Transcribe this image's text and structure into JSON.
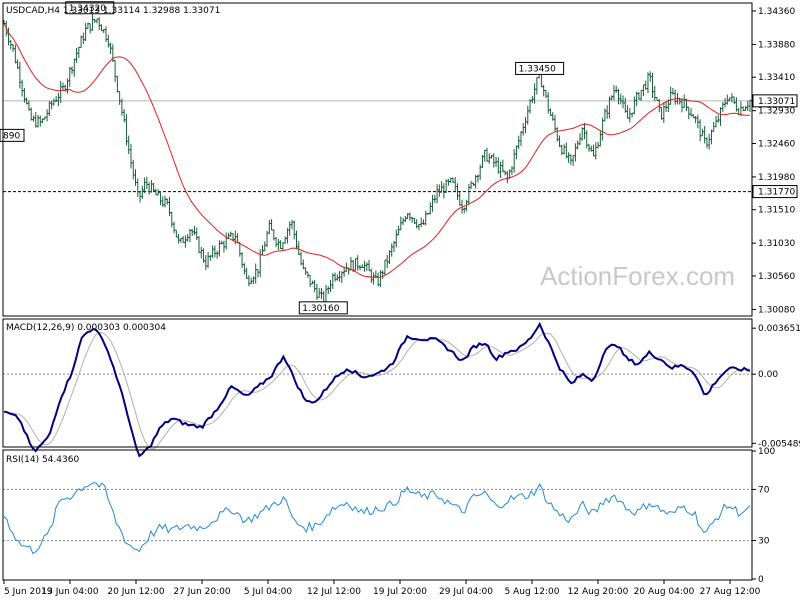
{
  "chart_data": {
    "type": "line",
    "symbol": "USDCAD,H4",
    "header_values": "1.33013 1.33114 1.32988 1.33071",
    "watermark": "ActionForex.com",
    "x_ticks": [
      "5 Jun 2019",
      "13 Jun 04:00",
      "20 Jun 12:00",
      "27 Jun 20:00",
      "5 Jul 04:00",
      "12 Jul 12:00",
      "19 Jul 20:00",
      "29 Jul 04:00",
      "5 Aug 12:00",
      "12 Aug 20:00",
      "20 Aug 04:00",
      "27 Aug 12:00"
    ],
    "price": {
      "y_ticks": [
        1.3436,
        1.3388,
        1.3341,
        1.3293,
        1.3246,
        1.3198,
        1.3151,
        1.3103,
        1.3056,
        1.3008
      ],
      "y_tick_labels": [
        "1.34360",
        "1.33880",
        "1.33410",
        "1.32930",
        "1.32460",
        "1.31980",
        "1.31510",
        "1.31030",
        "1.30560",
        "1.30080"
      ],
      "ylim": [
        1.3,
        1.3446
      ],
      "current": {
        "value": 1.33071,
        "label": "1.33071"
      },
      "level": {
        "value": 1.3177,
        "label": "1.31770"
      },
      "annotations": [
        {
          "label": "1.34320",
          "value": 1.3432,
          "t": 0.115
        },
        {
          "label": "1.33450",
          "value": 1.3345,
          "t": 0.718
        },
        {
          "label": "1.30160",
          "value": 1.3016,
          "t": 0.428
        },
        {
          "label": "890",
          "value": 1.3249,
          "t": 0.0
        }
      ],
      "anchors": [
        [
          0,
          1.3418
        ],
        [
          0.012,
          1.338
        ],
        [
          0.025,
          1.3325
        ],
        [
          0.035,
          1.328
        ],
        [
          0.05,
          1.3275
        ],
        [
          0.065,
          1.3305
        ],
        [
          0.08,
          1.3325
        ],
        [
          0.095,
          1.337
        ],
        [
          0.11,
          1.341
        ],
        [
          0.125,
          1.3425
        ],
        [
          0.14,
          1.3395
        ],
        [
          0.155,
          1.331
        ],
        [
          0.17,
          1.322
        ],
        [
          0.18,
          1.3165
        ],
        [
          0.19,
          1.319
        ],
        [
          0.205,
          1.317
        ],
        [
          0.22,
          1.3155
        ],
        [
          0.235,
          1.31
        ],
        [
          0.25,
          1.3125
        ],
        [
          0.27,
          1.3075
        ],
        [
          0.29,
          1.31
        ],
        [
          0.31,
          1.3115
        ],
        [
          0.325,
          1.305
        ],
        [
          0.34,
          1.3065
        ],
        [
          0.355,
          1.3125
        ],
        [
          0.37,
          1.31
        ],
        [
          0.385,
          1.3135
        ],
        [
          0.4,
          1.3065
        ],
        [
          0.415,
          1.304
        ],
        [
          0.428,
          1.302
        ],
        [
          0.44,
          1.3055
        ],
        [
          0.46,
          1.307
        ],
        [
          0.48,
          1.3075
        ],
        [
          0.5,
          1.3045
        ],
        [
          0.52,
          1.3095
        ],
        [
          0.54,
          1.315
        ],
        [
          0.56,
          1.3125
        ],
        [
          0.58,
          1.3175
        ],
        [
          0.6,
          1.319
        ],
        [
          0.615,
          1.3155
        ],
        [
          0.63,
          1.3195
        ],
        [
          0.645,
          1.323
        ],
        [
          0.66,
          1.3215
        ],
        [
          0.675,
          1.3195
        ],
        [
          0.69,
          1.325
        ],
        [
          0.705,
          1.3305
        ],
        [
          0.718,
          1.3345
        ],
        [
          0.73,
          1.3295
        ],
        [
          0.745,
          1.3245
        ],
        [
          0.76,
          1.3215
        ],
        [
          0.775,
          1.327
        ],
        [
          0.79,
          1.3225
        ],
        [
          0.805,
          1.3285
        ],
        [
          0.82,
          1.333
        ],
        [
          0.835,
          1.328
        ],
        [
          0.85,
          1.3315
        ],
        [
          0.865,
          1.334
        ],
        [
          0.88,
          1.3285
        ],
        [
          0.895,
          1.3315
        ],
        [
          0.91,
          1.3305
        ],
        [
          0.925,
          1.3285
        ],
        [
          0.94,
          1.3245
        ],
        [
          0.955,
          1.3275
        ],
        [
          0.97,
          1.3315
        ],
        [
          0.985,
          1.3295
        ],
        [
          1.0,
          1.3307
        ]
      ]
    },
    "macd": {
      "label": "MACD(12,26,9) 0.000303 0.000304",
      "y_ticks": [
        0.003651,
        0.0,
        -0.005489
      ],
      "y_tick_labels": [
        "0.003651",
        "0.00",
        "-0.005489"
      ],
      "ylim": [
        -0.0057,
        0.0043
      ],
      "colors": {
        "macd": "#000080",
        "signal": "#b0b0b0"
      },
      "anchors": [
        [
          0,
          -0.003
        ],
        [
          0.02,
          -0.0035
        ],
        [
          0.04,
          -0.0062
        ],
        [
          0.06,
          -0.005
        ],
        [
          0.075,
          -0.002
        ],
        [
          0.09,
          0.0
        ],
        [
          0.105,
          0.003
        ],
        [
          0.12,
          0.0037
        ],
        [
          0.135,
          0.0025
        ],
        [
          0.15,
          0.0
        ],
        [
          0.165,
          -0.003
        ],
        [
          0.18,
          -0.0066
        ],
        [
          0.195,
          -0.0058
        ],
        [
          0.21,
          -0.0042
        ],
        [
          0.225,
          -0.0035
        ],
        [
          0.245,
          -0.004
        ],
        [
          0.265,
          -0.0042
        ],
        [
          0.285,
          -0.0028
        ],
        [
          0.305,
          -0.001
        ],
        [
          0.325,
          -0.0018
        ],
        [
          0.345,
          -0.0008
        ],
        [
          0.36,
          0.0
        ],
        [
          0.375,
          0.0015
        ],
        [
          0.39,
          -0.0005
        ],
        [
          0.405,
          -0.0022
        ],
        [
          0.42,
          -0.0021
        ],
        [
          0.44,
          -0.0005
        ],
        [
          0.46,
          0.0005
        ],
        [
          0.48,
          -0.0002
        ],
        [
          0.5,
          0.0
        ],
        [
          0.52,
          0.0008
        ],
        [
          0.54,
          0.003
        ],
        [
          0.56,
          0.0028
        ],
        [
          0.58,
          0.0027
        ],
        [
          0.6,
          0.0018
        ],
        [
          0.615,
          0.001
        ],
        [
          0.63,
          0.0022
        ],
        [
          0.645,
          0.0025
        ],
        [
          0.66,
          0.0012
        ],
        [
          0.675,
          0.0018
        ],
        [
          0.69,
          0.002
        ],
        [
          0.705,
          0.0028
        ],
        [
          0.718,
          0.004
        ],
        [
          0.73,
          0.0025
        ],
        [
          0.745,
          0.0005
        ],
        [
          0.76,
          -0.0008
        ],
        [
          0.775,
          0.0
        ],
        [
          0.79,
          -0.0005
        ],
        [
          0.805,
          0.0018
        ],
        [
          0.82,
          0.0025
        ],
        [
          0.835,
          0.0012
        ],
        [
          0.85,
          0.0008
        ],
        [
          0.865,
          0.0017
        ],
        [
          0.88,
          0.0012
        ],
        [
          0.895,
          0.0005
        ],
        [
          0.91,
          0.0007
        ],
        [
          0.925,
          0.0002
        ],
        [
          0.94,
          -0.0018
        ],
        [
          0.955,
          -0.0005
        ],
        [
          0.97,
          0.0004
        ],
        [
          0.985,
          0.0004
        ],
        [
          1.0,
          0.0003
        ]
      ]
    },
    "rsi": {
      "label": "RSI(14) 54.4360",
      "y_ticks": [
        100,
        70,
        30,
        0
      ],
      "y_tick_labels": [
        "100",
        "70",
        "30",
        "0"
      ],
      "ylim": [
        0,
        100
      ],
      "color": "#1f8ad8",
      "anchors": [
        [
          0,
          50
        ],
        [
          0.02,
          28
        ],
        [
          0.04,
          22
        ],
        [
          0.06,
          35
        ],
        [
          0.075,
          62
        ],
        [
          0.09,
          65
        ],
        [
          0.105,
          72
        ],
        [
          0.12,
          76
        ],
        [
          0.135,
          70
        ],
        [
          0.15,
          45
        ],
        [
          0.165,
          28
        ],
        [
          0.18,
          22
        ],
        [
          0.195,
          34
        ],
        [
          0.21,
          40
        ],
        [
          0.225,
          38
        ],
        [
          0.245,
          42
        ],
        [
          0.265,
          40
        ],
        [
          0.285,
          48
        ],
        [
          0.305,
          55
        ],
        [
          0.325,
          45
        ],
        [
          0.345,
          52
        ],
        [
          0.36,
          58
        ],
        [
          0.375,
          63
        ],
        [
          0.39,
          44
        ],
        [
          0.405,
          40
        ],
        [
          0.42,
          42
        ],
        [
          0.44,
          55
        ],
        [
          0.46,
          60
        ],
        [
          0.48,
          52
        ],
        [
          0.5,
          55
        ],
        [
          0.52,
          58
        ],
        [
          0.54,
          70
        ],
        [
          0.56,
          64
        ],
        [
          0.58,
          66
        ],
        [
          0.6,
          58
        ],
        [
          0.615,
          52
        ],
        [
          0.63,
          64
        ],
        [
          0.645,
          67
        ],
        [
          0.66,
          56
        ],
        [
          0.675,
          62
        ],
        [
          0.69,
          64
        ],
        [
          0.705,
          66
        ],
        [
          0.718,
          72
        ],
        [
          0.73,
          60
        ],
        [
          0.745,
          50
        ],
        [
          0.76,
          46
        ],
        [
          0.775,
          58
        ],
        [
          0.79,
          50
        ],
        [
          0.805,
          62
        ],
        [
          0.82,
          65
        ],
        [
          0.835,
          55
        ],
        [
          0.85,
          52
        ],
        [
          0.865,
          60
        ],
        [
          0.88,
          54
        ],
        [
          0.895,
          50
        ],
        [
          0.91,
          57
        ],
        [
          0.925,
          52
        ],
        [
          0.94,
          34
        ],
        [
          0.955,
          48
        ],
        [
          0.97,
          58
        ],
        [
          0.985,
          52
        ],
        [
          1.0,
          54.4
        ]
      ]
    }
  }
}
